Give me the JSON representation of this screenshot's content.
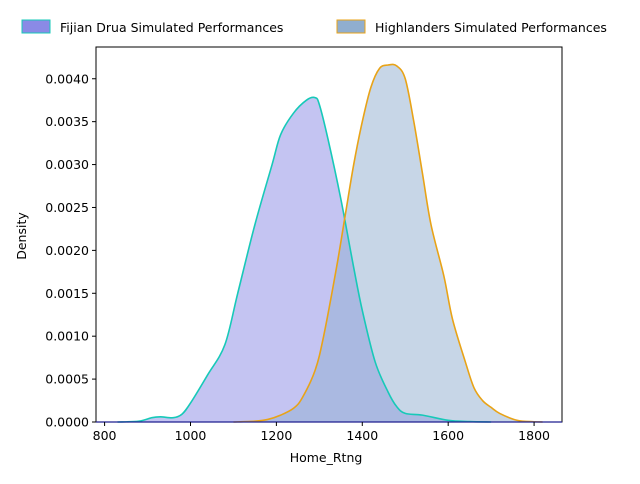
{
  "chart_data": {
    "type": "area",
    "xlabel": "Home_Rtng",
    "ylabel": "Density",
    "xlim": [
      780,
      1865
    ],
    "ylim": [
      0,
      0.00437
    ],
    "x_ticks": [
      "800",
      "1000",
      "1200",
      "1400",
      "1600",
      "1800"
    ],
    "y_ticks": [
      "0.0000",
      "0.0005",
      "0.0010",
      "0.0015",
      "0.0020",
      "0.0025",
      "0.0030",
      "0.0035",
      "0.0040"
    ],
    "legend_position": "top, above plot, horizontal",
    "grid": false,
    "series": [
      {
        "name": "Fijian Drua Simulated Performances",
        "fill_color": "#8a8ae6",
        "line_color": "#17c9b8",
        "x": [
          830,
          880,
          910,
          930,
          960,
          980,
          1000,
          1040,
          1080,
          1110,
          1150,
          1190,
          1210,
          1240,
          1270,
          1290,
          1300,
          1320,
          1350,
          1380,
          1400,
          1430,
          1460,
          1480,
          1500,
          1540,
          1600,
          1650,
          1700
        ],
        "y": [
          0.0,
          1e-05,
          5e-05,
          6e-05,
          5e-05,
          9e-05,
          0.00022,
          0.00055,
          0.0009,
          0.0015,
          0.0023,
          0.003,
          0.00335,
          0.0036,
          0.00375,
          0.00378,
          0.0037,
          0.0033,
          0.0026,
          0.0018,
          0.0013,
          0.0007,
          0.00035,
          0.00018,
          0.0001,
          8e-05,
          2e-05,
          5e-06,
          0.0
        ]
      },
      {
        "name": "Highlanders Simulated Performances",
        "fill_color": "#90aecf",
        "line_color": "#e8a317",
        "x": [
          1100,
          1150,
          1180,
          1210,
          1240,
          1260,
          1290,
          1310,
          1340,
          1360,
          1380,
          1400,
          1420,
          1440,
          1460,
          1480,
          1500,
          1520,
          1540,
          1560,
          1590,
          1610,
          1640,
          1660,
          1680,
          1700,
          1720,
          1760,
          1800,
          1820
        ],
        "y": [
          0.0,
          1e-05,
          3e-05,
          8e-05,
          0.00016,
          0.00028,
          0.0006,
          0.001,
          0.0018,
          0.0024,
          0.003,
          0.0035,
          0.0039,
          0.00412,
          0.00416,
          0.00415,
          0.004,
          0.0035,
          0.0029,
          0.0023,
          0.0017,
          0.0012,
          0.0007,
          0.0004,
          0.00025,
          0.00017,
          0.0001,
          2e-05,
          3e-06,
          0.0
        ]
      }
    ]
  }
}
